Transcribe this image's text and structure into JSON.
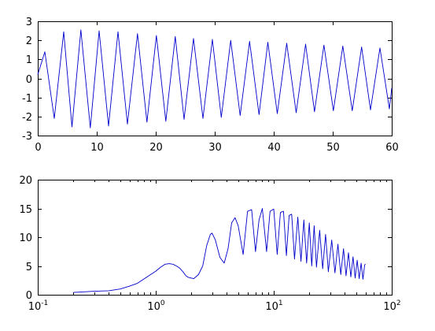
{
  "chart_data": [
    {
      "type": "line",
      "title": "",
      "xlabel": "",
      "ylabel": "",
      "xlim": [
        0,
        60
      ],
      "ylim": [
        -3,
        3
      ],
      "x_ticks": [
        0,
        10,
        20,
        30,
        40,
        50,
        60
      ],
      "y_ticks": [
        -3,
        -2,
        -1,
        0,
        1,
        2,
        3
      ],
      "x_tick_labels": [
        "0",
        "10",
        "20",
        "30",
        "40",
        "50",
        "60"
      ],
      "y_tick_labels": [
        "-3",
        "-2",
        "-1",
        "0",
        "1",
        "2",
        "3"
      ],
      "grid": false,
      "legend": "none",
      "series": [
        {
          "color": "#0000cc",
          "x": [
            0,
            1.2,
            2.8,
            4.4,
            5.8,
            7.3,
            8.9,
            10.4,
            12.0,
            13.6,
            15.2,
            16.9,
            18.5,
            20.1,
            21.7,
            23.3,
            24.8,
            26.4,
            28.0,
            29.6,
            31.1,
            32.7,
            34.3,
            35.9,
            37.5,
            39.0,
            40.6,
            42.2,
            43.8,
            45.4,
            46.9,
            48.5,
            50.1,
            51.7,
            53.3,
            54.9,
            56.4,
            58.0,
            59.6,
            60
          ],
          "y": [
            0.2,
            1.4,
            -2.1,
            2.45,
            -2.55,
            2.55,
            -2.6,
            2.5,
            -2.5,
            2.45,
            -2.4,
            2.35,
            -2.3,
            2.25,
            -2.25,
            2.2,
            -2.15,
            2.1,
            -2.1,
            2.05,
            -2.05,
            2.0,
            -1.95,
            1.95,
            -1.9,
            1.9,
            -1.85,
            1.85,
            -1.8,
            1.8,
            -1.75,
            1.75,
            -1.7,
            1.7,
            -1.7,
            1.65,
            -1.65,
            1.6,
            -1.6,
            -0.5
          ]
        }
      ]
    },
    {
      "type": "line",
      "title": "",
      "xlabel": "",
      "ylabel": "",
      "xscale": "log",
      "xlim": [
        0.1,
        100
      ],
      "ylim": [
        0,
        20
      ],
      "x_ticks": [
        0.1,
        1,
        10,
        100
      ],
      "y_ticks": [
        0,
        5,
        10,
        15,
        20
      ],
      "x_tick_labels": [
        {
          "base": "10",
          "exp": "-1"
        },
        {
          "base": "10",
          "exp": "0"
        },
        {
          "base": "10",
          "exp": "1"
        },
        {
          "base": "10",
          "exp": "2"
        }
      ],
      "y_tick_labels": [
        "0",
        "5",
        "10",
        "15",
        "20"
      ],
      "grid": false,
      "legend": "none",
      "series": [
        {
          "color": "#0000cc",
          "x": [
            0.2,
            0.3,
            0.4,
            0.5,
            0.6,
            0.7,
            0.8,
            1.0,
            1.1,
            1.2,
            1.3,
            1.4,
            1.5,
            1.6,
            1.7,
            1.8,
            1.9,
            2.1,
            2.3,
            2.5,
            2.7,
            2.9,
            3.0,
            3.2,
            3.5,
            3.8,
            4.1,
            4.4,
            4.7,
            5.0,
            5.5,
            6.0,
            6.5,
            7.0,
            7.5,
            8.0,
            8.7,
            9.3,
            10.0,
            10.7,
            11.4,
            12.1,
            12.8,
            13.5,
            14.2,
            15.0,
            16.0,
            17.0,
            18.0,
            19.0,
            20.0,
            21.0,
            22.0,
            23.0,
            24.5,
            26.0,
            27.5,
            29.0,
            31.0,
            33.0,
            35.0,
            37.0,
            39.0,
            41.0,
            43.0,
            45.0,
            47.0,
            49.0,
            51.0,
            53.0,
            55.0,
            57.0,
            59.0,
            60.0
          ],
          "y": [
            0.4,
            0.6,
            0.7,
            1.0,
            1.5,
            2.0,
            2.8,
            4.1,
            4.8,
            5.3,
            5.4,
            5.3,
            5.0,
            4.6,
            4.0,
            3.3,
            3.0,
            2.8,
            3.5,
            5.0,
            8.5,
            10.5,
            10.7,
            9.5,
            6.5,
            5.5,
            8.0,
            12.5,
            13.4,
            12.0,
            7.0,
            14.5,
            14.8,
            7.5,
            13.0,
            15.0,
            7.5,
            14.5,
            14.9,
            7.0,
            14.3,
            14.5,
            6.8,
            13.8,
            14.0,
            6.2,
            13.5,
            5.8,
            13.0,
            5.5,
            12.5,
            5.0,
            12.0,
            4.8,
            11.2,
            4.5,
            10.5,
            4.0,
            9.5,
            3.8,
            8.8,
            3.5,
            8.0,
            3.3,
            7.3,
            3.1,
            6.6,
            2.9,
            6.0,
            2.8,
            5.5,
            2.7,
            5.2,
            5.3
          ]
        }
      ]
    }
  ]
}
